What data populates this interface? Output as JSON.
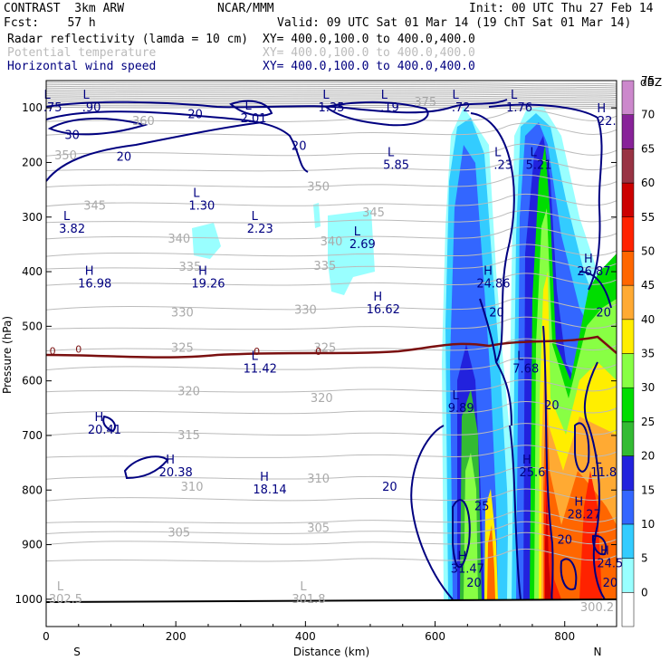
{
  "header": {
    "line1_left": "CONTRAST  3km ARW",
    "line1_mid": "NCAR/MMM",
    "line1_right": "Init: 00 UTC Thu 27 Feb 14",
    "line2_left": "Fcst:    57 h",
    "line2_right": "Valid: 09 UTC Sat 01 Mar 14 (19 ChT Sat 01 Mar 14)",
    "fields": [
      {
        "name": "Radar reflectivity (lamda = 10 cm)",
        "xy": "XY= 400.0,100.0 to 400.0,400.0",
        "color": "#000000"
      },
      {
        "name": "Potential temperature",
        "xy": "XY= 400.0,100.0 to 400.0,400.0",
        "color": "#bbbbbb"
      },
      {
        "name": "Horizontal wind speed",
        "xy": "XY= 400.0,100.0 to 400.0,400.0",
        "color": "#000080"
      }
    ]
  },
  "chart_data": {
    "type": "cross-section",
    "xlabel": "Distance (km)",
    "ylabel": "Pressure (hPa)",
    "xlim": [
      0,
      880
    ],
    "ylim": [
      1050,
      50
    ],
    "xticks": [
      0,
      200,
      400,
      600,
      800
    ],
    "yticks": [
      100,
      200,
      300,
      400,
      500,
      600,
      700,
      800,
      900,
      1000
    ],
    "x_end_labels": {
      "left": "S",
      "right": "N"
    },
    "colorbar": {
      "unit": "dBZ",
      "levels": [
        0,
        5,
        10,
        15,
        20,
        25,
        30,
        35,
        40,
        45,
        50,
        55,
        60,
        65,
        70,
        75
      ],
      "colors": [
        "#ffffff",
        "#99ffff",
        "#33ccff",
        "#3366ff",
        "#2222dd",
        "#33bb33",
        "#00dd00",
        "#88ff44",
        "#ffee00",
        "#ffaa33",
        "#ff6600",
        "#ff2200",
        "#cc0000",
        "#993344",
        "#882299",
        "#cc88cc"
      ]
    },
    "theta_labels": [
      {
        "text": "375",
        "x": 585,
        "p": 90
      },
      {
        "text": "360",
        "x": 150,
        "p": 125
      },
      {
        "text": "350",
        "x": 30,
        "p": 188
      },
      {
        "text": "350",
        "x": 420,
        "p": 245
      },
      {
        "text": "345",
        "x": 75,
        "p": 280
      },
      {
        "text": "345",
        "x": 505,
        "p": 292
      },
      {
        "text": "340",
        "x": 205,
        "p": 340
      },
      {
        "text": "340",
        "x": 440,
        "p": 345
      },
      {
        "text": "335",
        "x": 222,
        "p": 392
      },
      {
        "text": "335",
        "x": 430,
        "p": 390
      },
      {
        "text": "330",
        "x": 400,
        "p": 470
      },
      {
        "text": "330",
        "x": 210,
        "p": 475
      },
      {
        "text": "325",
        "x": 210,
        "p": 540
      },
      {
        "text": "325",
        "x": 430,
        "p": 540
      },
      {
        "text": "320",
        "x": 220,
        "p": 620
      },
      {
        "text": "320",
        "x": 425,
        "p": 632
      },
      {
        "text": "315",
        "x": 220,
        "p": 700
      },
      {
        "text": "310",
        "x": 225,
        "p": 795
      },
      {
        "text": "310",
        "x": 420,
        "p": 780
      },
      {
        "text": "305",
        "x": 205,
        "p": 878
      },
      {
        "text": "305",
        "x": 420,
        "p": 870
      }
    ],
    "wind_labels": [
      {
        "text": "20",
        "x": 230,
        "p": 112
      },
      {
        "text": "30",
        "x": 40,
        "p": 150
      },
      {
        "text": "20",
        "x": 120,
        "p": 190
      },
      {
        "text": "20",
        "x": 390,
        "p": 170
      },
      {
        "text": "20",
        "x": 695,
        "p": 475
      },
      {
        "text": "20",
        "x": 780,
        "p": 645
      },
      {
        "text": "20",
        "x": 860,
        "p": 475
      },
      {
        "text": "20",
        "x": 530,
        "p": 795
      },
      {
        "text": "25",
        "x": 672,
        "p": 830
      },
      {
        "text": "20",
        "x": 800,
        "p": 892
      },
      {
        "text": "20",
        "x": 870,
        "p": 970
      },
      {
        "text": "20",
        "x": 660,
        "p": 970
      }
    ],
    "theta_zero_label": "0",
    "extrema": [
      {
        "kind": "L",
        "value": "2.01",
        "x": 320,
        "p": 110
      },
      {
        "kind": "L",
        "value": "1.35",
        "x": 440,
        "p": 90
      },
      {
        "kind": "L",
        "value": ".19",
        "x": 530,
        "p": 90
      },
      {
        "kind": "L",
        "value": ".72",
        "x": 640,
        "p": 90
      },
      {
        "kind": "L",
        "value": "1.76",
        "x": 730,
        "p": 90
      },
      {
        "kind": "H",
        "value": "22.",
        "x": 865,
        "p": 115
      },
      {
        "kind": "L",
        "value": ".75",
        "x": 10,
        "p": 90
      },
      {
        "kind": "L",
        "value": ".90",
        "x": 70,
        "p": 90
      },
      {
        "kind": "L",
        "value": "5.85",
        "x": 540,
        "p": 195
      },
      {
        "kind": "L",
        "value": ".23",
        "x": 705,
        "p": 195
      },
      {
        "kind": "L",
        "value": "5.21",
        "x": 760,
        "p": 195
      },
      {
        "kind": "L",
        "value": "1.30",
        "x": 240,
        "p": 270
      },
      {
        "kind": "L",
        "value": "3.82",
        "x": 40,
        "p": 312
      },
      {
        "kind": "L",
        "value": "2.23",
        "x": 330,
        "p": 312
      },
      {
        "kind": "L",
        "value": "2.69",
        "x": 488,
        "p": 340
      },
      {
        "kind": "H",
        "value": "16.98",
        "x": 75,
        "p": 412
      },
      {
        "kind": "H",
        "value": "19.26",
        "x": 250,
        "p": 412
      },
      {
        "kind": "H",
        "value": "24.86",
        "x": 690,
        "p": 412
      },
      {
        "kind": "H",
        "value": "26.87",
        "x": 845,
        "p": 390
      },
      {
        "kind": "H",
        "value": "16.62",
        "x": 520,
        "p": 460
      },
      {
        "kind": "L",
        "value": "11.42",
        "x": 330,
        "p": 568
      },
      {
        "kind": "L",
        "value": "7.68",
        "x": 740,
        "p": 568
      },
      {
        "kind": "L",
        "value": "9.89",
        "x": 640,
        "p": 640
      },
      {
        "kind": "H",
        "value": "20.41",
        "x": 90,
        "p": 680
      },
      {
        "kind": "H",
        "value": "25.6",
        "x": 750,
        "p": 758
      },
      {
        "kind": "L",
        "value": "11.8",
        "x": 860,
        "p": 758
      },
      {
        "kind": "H",
        "value": "20.38",
        "x": 200,
        "p": 758
      },
      {
        "kind": "H",
        "value": "18.14",
        "x": 345,
        "p": 790
      },
      {
        "kind": "H",
        "value": "28.27",
        "x": 830,
        "p": 835
      },
      {
        "kind": "H",
        "value": "31.47",
        "x": 650,
        "p": 935
      },
      {
        "kind": "H",
        "value": "24.5",
        "x": 870,
        "p": 925
      },
      {
        "kind": "L",
        "value": "302.5",
        "x": 30,
        "p": 990
      },
      {
        "kind": "L",
        "value": "301.8",
        "x": 405,
        "p": 990
      },
      {
        "kind": "V",
        "value": "300.2",
        "x": 850,
        "p": 1005
      }
    ]
  }
}
